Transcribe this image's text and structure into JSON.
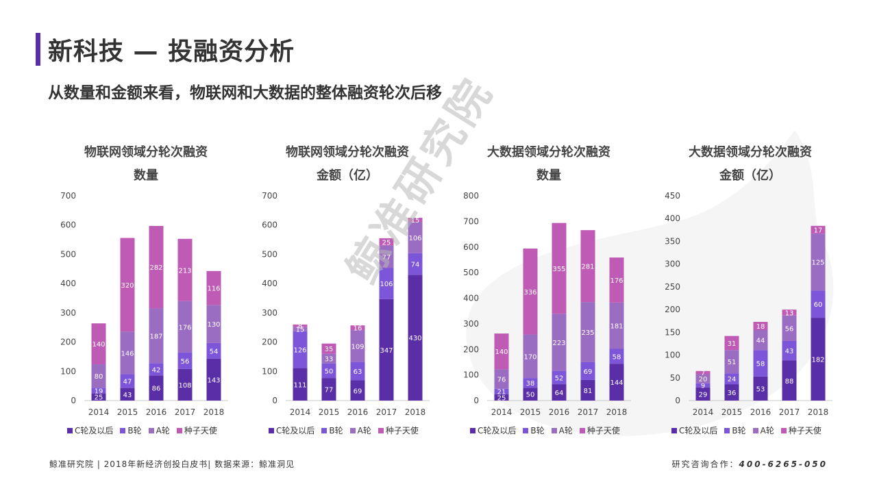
{
  "header": {
    "title": "新科技 — 投融资分析",
    "subtitle": "从数量和金额来看，物联网和大数据的整体融资轮次后移"
  },
  "watermark": "鲸准研究院",
  "footer": {
    "left": "鲸准研究院 | 2018年新经济创投白皮书| 数据来源：鲸准洞见",
    "right_label": "研究咨询合作：",
    "phone": "400-6265-050"
  },
  "colors": {
    "C轮及以后": "#5a2ea6",
    "B轮": "#7c55d8",
    "A轮": "#9a6cc2",
    "种子天使": "#bf5bb4",
    "brand": "#5b2fa3"
  },
  "chart_data": [
    {
      "type": "bar",
      "stacked": true,
      "title": "物联网领域分轮次融资",
      "subtitle": "数量",
      "categories": [
        "2014",
        "2015",
        "2016",
        "2017",
        "2018"
      ],
      "ylim": [
        0,
        700
      ],
      "yticks": [
        0,
        100,
        200,
        300,
        400,
        500,
        600,
        700
      ],
      "legend_position": "bottom",
      "series": [
        {
          "name": "C轮及以后",
          "values": [
            25,
            43,
            86,
            108,
            143
          ]
        },
        {
          "name": "B轮",
          "values": [
            19,
            47,
            42,
            56,
            54
          ]
        },
        {
          "name": "A轮",
          "values": [
            80,
            146,
            187,
            176,
            130
          ]
        },
        {
          "name": "种子天使",
          "values": [
            140,
            320,
            282,
            213,
            116
          ]
        }
      ]
    },
    {
      "type": "bar",
      "stacked": true,
      "title": "物联网领域分轮次融资",
      "subtitle": "金额（亿）",
      "categories": [
        "2014",
        "2015",
        "2016",
        "2017",
        "2018"
      ],
      "ylim": [
        0,
        700
      ],
      "yticks": [
        0,
        100,
        200,
        300,
        400,
        500,
        600,
        700
      ],
      "legend_position": "bottom",
      "series": [
        {
          "name": "C轮及以后",
          "values": [
            111,
            77,
            69,
            347,
            430
          ]
        },
        {
          "name": "B轮",
          "values": [
            126,
            50,
            63,
            106,
            74
          ]
        },
        {
          "name": "A轮",
          "values": [
            15,
            33,
            109,
            77,
            106
          ]
        },
        {
          "name": "种子天使",
          "values": [
            8,
            35,
            16,
            25,
            15
          ]
        }
      ]
    },
    {
      "type": "bar",
      "stacked": true,
      "title": "大数据领域分轮次融资",
      "subtitle": "数量",
      "categories": [
        "2014",
        "2015",
        "2016",
        "2017",
        "2018"
      ],
      "ylim": [
        0,
        800
      ],
      "yticks": [
        0,
        100,
        200,
        300,
        400,
        500,
        600,
        700,
        800
      ],
      "legend_position": "bottom",
      "series": [
        {
          "name": "C轮及以后",
          "values": [
            25,
            50,
            64,
            81,
            144
          ]
        },
        {
          "name": "B轮",
          "values": [
            21,
            38,
            52,
            69,
            58
          ]
        },
        {
          "name": "A轮",
          "values": [
            76,
            170,
            223,
            235,
            181
          ]
        },
        {
          "name": "种子天使",
          "values": [
            140,
            336,
            355,
            281,
            176
          ]
        }
      ]
    },
    {
      "type": "bar",
      "stacked": true,
      "title": "大数据领域分轮次融资",
      "subtitle": "金额（亿）",
      "categories": [
        "2014",
        "2015",
        "2016",
        "2017",
        "2018"
      ],
      "ylim": [
        0,
        450
      ],
      "yticks": [
        0,
        50,
        100,
        150,
        200,
        250,
        300,
        350,
        400,
        450
      ],
      "legend_position": "bottom",
      "series": [
        {
          "name": "C轮及以后",
          "values": [
            29,
            36,
            53,
            88,
            182
          ]
        },
        {
          "name": "B轮",
          "values": [
            9,
            24,
            58,
            43,
            60
          ]
        },
        {
          "name": "A轮",
          "values": [
            20,
            51,
            44,
            56,
            125
          ]
        },
        {
          "name": "种子天使",
          "values": [
            7,
            31,
            18,
            13,
            17
          ]
        }
      ]
    }
  ]
}
